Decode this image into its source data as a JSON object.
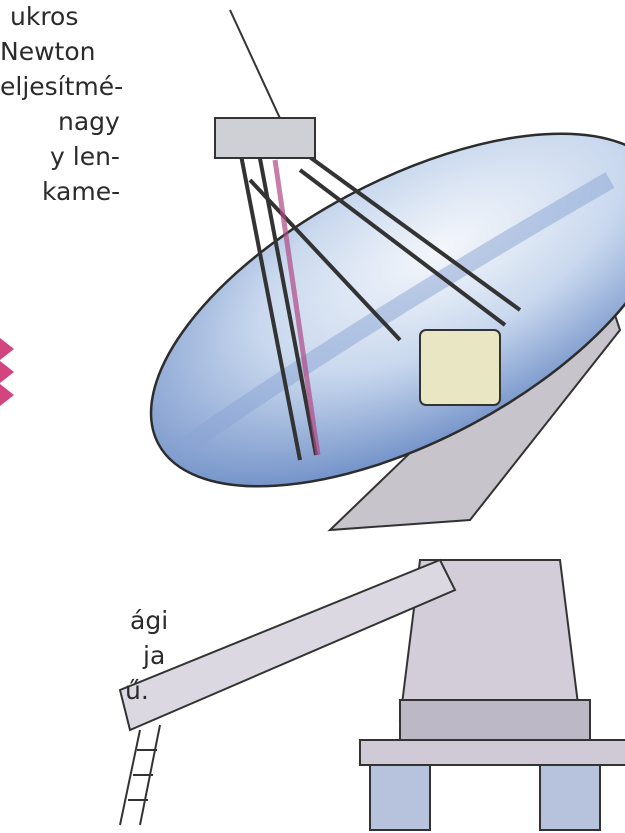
{
  "text_top": {
    "lines": [
      "ukros",
      "Newton",
      "eljesítmé-",
      "nagy",
      "y len-",
      "kame-"
    ]
  },
  "text_bottom": {
    "lines": [
      "ági",
      "ja",
      "ű."
    ]
  }
}
